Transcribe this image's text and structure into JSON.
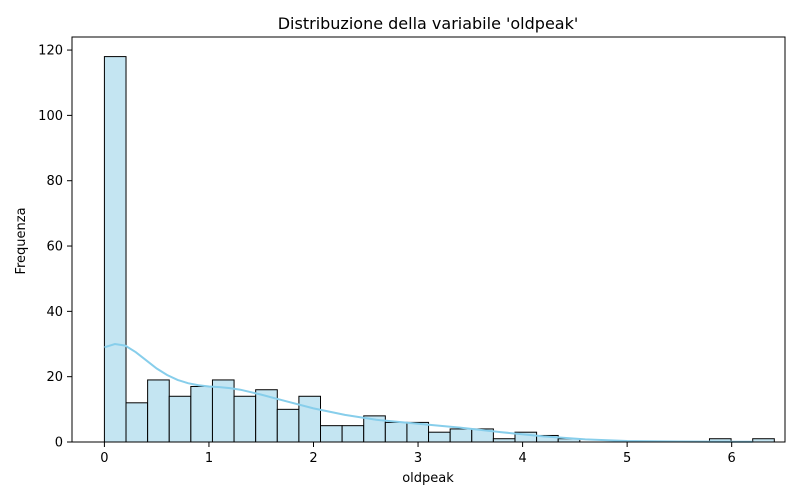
{
  "chart_data": {
    "type": "bar",
    "subtype": "histogram",
    "title": "Distribuzione della variabile 'oldpeak'",
    "xlabel": "oldpeak",
    "ylabel": "Frequenza",
    "xlim": [
      -0.31,
      6.51
    ],
    "ylim": [
      0,
      124
    ],
    "x_ticks": [
      0,
      1,
      2,
      3,
      4,
      5,
      6
    ],
    "y_ticks": [
      0,
      20,
      40,
      60,
      80,
      100,
      120
    ],
    "bin_start": 0,
    "bin_width": 0.2067,
    "counts": [
      118,
      12,
      19,
      14,
      17,
      19,
      14,
      16,
      10,
      14,
      5,
      5,
      8,
      6,
      6,
      3,
      4,
      4,
      1,
      3,
      2,
      1,
      0,
      0,
      0,
      0,
      0,
      0,
      1,
      0,
      1
    ],
    "kde": {
      "x": [
        0,
        0.1,
        0.2,
        0.3,
        0.4,
        0.5,
        0.6,
        0.7,
        0.8,
        0.9,
        1.0,
        1.1,
        1.2,
        1.3,
        1.5,
        1.7,
        2.0,
        2.3,
        2.6,
        3.0,
        3.4,
        3.8,
        4.2,
        4.6,
        5.0,
        5.5,
        6.0,
        6.2
      ],
      "y": [
        29,
        30,
        29.5,
        27.5,
        25,
        22.5,
        20.5,
        19,
        18,
        17.4,
        17,
        16.8,
        16.5,
        16,
        14.5,
        12.8,
        10.3,
        8.3,
        6.8,
        5.6,
        4.4,
        3.0,
        1.7,
        0.8,
        0.3,
        0.15,
        0.1,
        0.05
      ]
    },
    "grid": false,
    "colors": {
      "bar_fill": "#c4e5f2",
      "bar_edge": "#000000",
      "kde_line": "#87ceeb",
      "axis": "#000000"
    }
  }
}
